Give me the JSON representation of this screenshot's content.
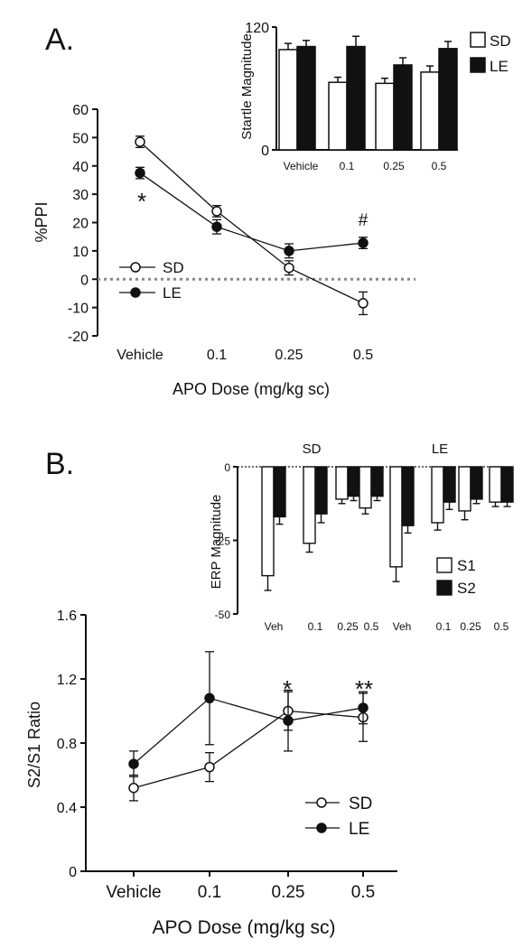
{
  "panel_a": {
    "label": "A.",
    "significance": [
      "*",
      "#"
    ],
    "legend": [
      "SD",
      "LE"
    ]
  },
  "panel_b": {
    "label": "B.",
    "significance": [
      "*",
      "**"
    ],
    "legend": [
      "SD",
      "LE"
    ]
  },
  "chart_data": [
    {
      "id": "A-main",
      "type": "line",
      "title": "",
      "xlabel": "APO Dose (mg/kg sc)",
      "ylabel": "%PPI",
      "categories": [
        "Vehicle",
        "0.1",
        "0.25",
        "0.5"
      ],
      "ylim": [
        -20,
        60
      ],
      "yticks": [
        -20,
        -10,
        0,
        10,
        20,
        30,
        40,
        50,
        60
      ],
      "reference_line": 0,
      "series": [
        {
          "name": "SD",
          "marker": "open-circle",
          "values": [
            48.5,
            24,
            4,
            -8.5
          ],
          "errors": [
            2,
            2,
            2.5,
            4
          ]
        },
        {
          "name": "LE",
          "marker": "filled-circle",
          "values": [
            37.5,
            18.5,
            10,
            12.8
          ],
          "errors": [
            2,
            2.5,
            2.5,
            2
          ]
        }
      ],
      "annotations": [
        {
          "text": "*",
          "category": "Vehicle"
        },
        {
          "text": "#",
          "category": "0.5"
        }
      ]
    },
    {
      "id": "A-inset",
      "type": "bar",
      "xlabel": "",
      "ylabel": "Startle Magnitude",
      "categories": [
        "Vehicle",
        "0.1",
        "0.25",
        "0.5"
      ],
      "ylim": [
        0,
        120
      ],
      "yticks": [
        0,
        120
      ],
      "legend_position": "right",
      "series": [
        {
          "name": "SD",
          "fill": "open",
          "values": [
            98,
            66,
            65,
            76
          ],
          "errors": [
            6,
            5,
            5,
            6
          ]
        },
        {
          "name": "LE",
          "fill": "filled",
          "values": [
            101,
            101,
            83,
            99
          ],
          "errors": [
            6,
            10,
            7,
            7
          ]
        }
      ]
    },
    {
      "id": "B-main",
      "type": "line",
      "title": "",
      "xlabel": "APO Dose (mg/kg sc)",
      "ylabel": "S2/S1 Ratio",
      "categories": [
        "Vehicle",
        "0.1",
        "0.25",
        "0.5"
      ],
      "ylim": [
        0,
        1.6
      ],
      "yticks": [
        "0",
        "0.4",
        "0.8",
        "1.2",
        "1.6"
      ],
      "series": [
        {
          "name": "SD",
          "marker": "open-circle",
          "values": [
            0.52,
            0.65,
            1.0,
            0.96
          ],
          "errors": [
            0.08,
            0.09,
            0.12,
            0.15
          ]
        },
        {
          "name": "LE",
          "marker": "filled-circle",
          "values": [
            0.67,
            1.08,
            0.94,
            1.02
          ],
          "errors": [
            0.08,
            0.29,
            0.19,
            0.1
          ]
        }
      ],
      "annotations": [
        {
          "text": "*",
          "category": "0.25"
        },
        {
          "text": "**",
          "category": "0.5"
        }
      ]
    },
    {
      "id": "B-inset",
      "type": "bar",
      "ylabel": "ERP Magnitude",
      "ylim": [
        -50,
        0
      ],
      "yticks": [
        0,
        -25,
        -50
      ],
      "groups": [
        {
          "name": "SD",
          "categories": [
            "Veh",
            "0.1",
            "0.25",
            "0.5"
          ],
          "S1": [
            -37,
            -26,
            -11,
            -14
          ],
          "S2": [
            -17,
            -16,
            -10,
            -10
          ],
          "S1_err": [
            5,
            3,
            1.5,
            2
          ],
          "S2_err": [
            2.5,
            3,
            1.5,
            1.5
          ]
        },
        {
          "name": "LE",
          "categories": [
            "Veh",
            "0.1",
            "0.25",
            "0.5"
          ],
          "S1": [
            -34,
            -19,
            -15,
            -12
          ],
          "S2": [
            -20,
            -12,
            -11,
            -12
          ],
          "S1_err": [
            5,
            2.5,
            3,
            1.5
          ],
          "S2_err": [
            2.5,
            2.5,
            1.5,
            1.5
          ]
        }
      ],
      "legend": [
        "S1",
        "S2"
      ],
      "legend_position": "bottom-right"
    }
  ]
}
